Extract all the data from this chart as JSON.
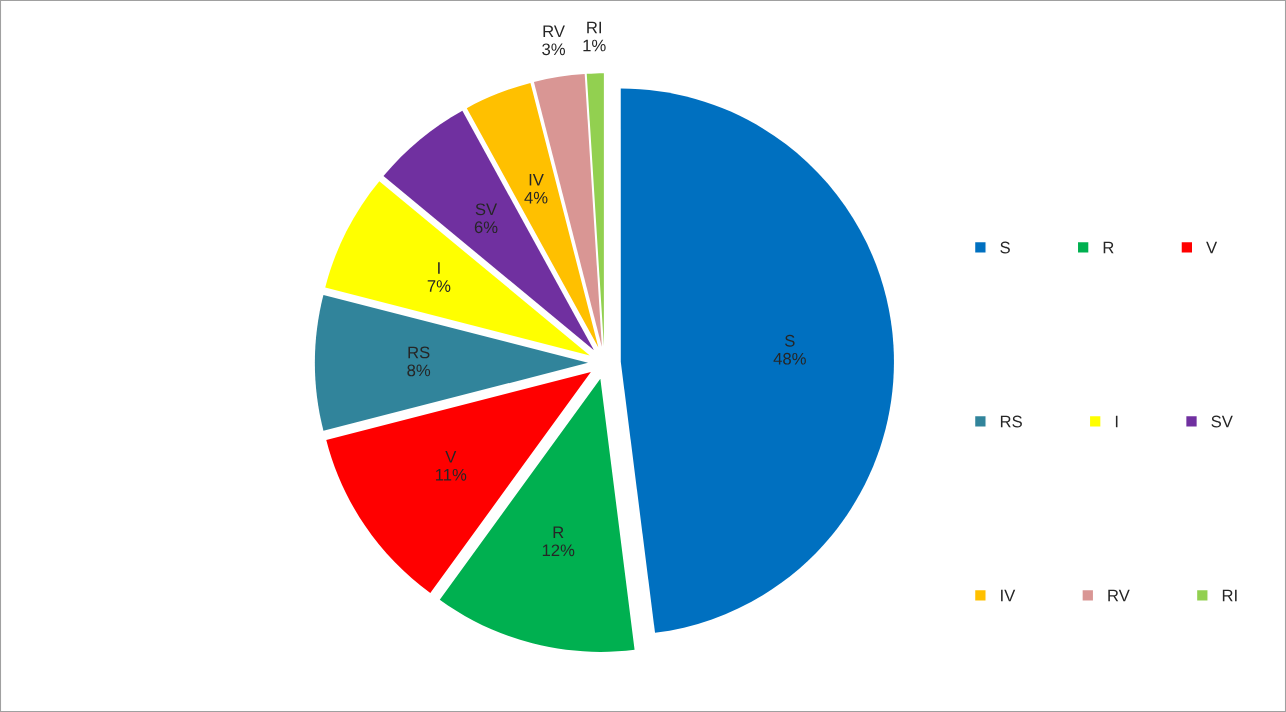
{
  "chart_data": {
    "type": "pie",
    "categories": [
      "S",
      "R",
      "V",
      "RS",
      "I",
      "SV",
      "IV",
      "RV",
      "RI"
    ],
    "values": [
      48,
      12,
      11,
      8,
      7,
      6,
      4,
      3,
      1
    ],
    "value_labels": [
      "48%",
      "12%",
      "11%",
      "8%",
      "7%",
      "6%",
      "4%",
      "3%",
      "1%"
    ],
    "colors": [
      "#0070c0",
      "#00b050",
      "#ff0000",
      "#31849b",
      "#ffff00",
      "#7030a0",
      "#ffc000",
      "#d99694",
      "#92d050"
    ],
    "legend": "right"
  }
}
